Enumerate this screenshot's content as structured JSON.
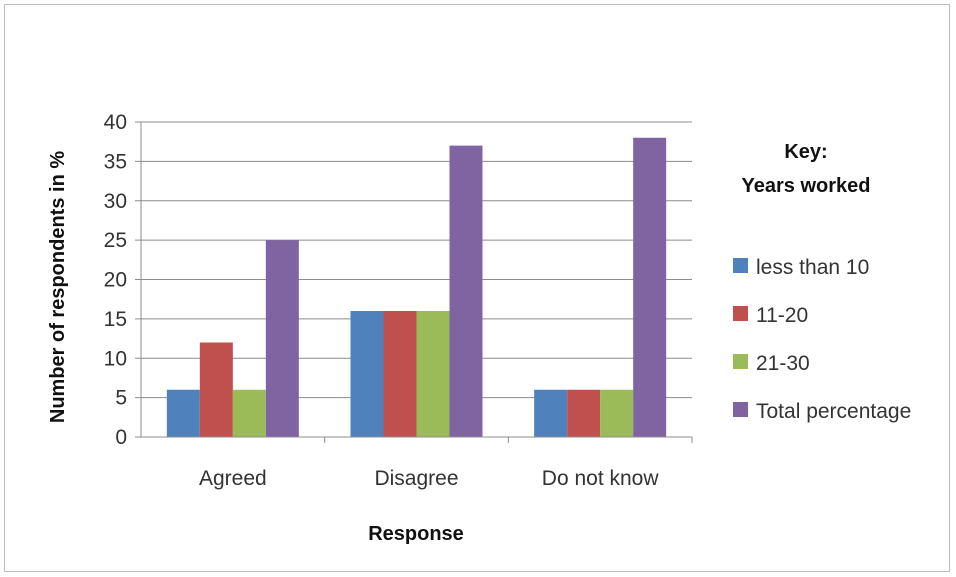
{
  "chart_data": {
    "type": "bar",
    "categories": [
      "Agreed",
      "Disagree",
      "Do not know"
    ],
    "series": [
      {
        "name": "less than 10",
        "color": "#4f81bd",
        "values": [
          6,
          16,
          6
        ]
      },
      {
        "name": "11-20",
        "color": "#c0504d",
        "values": [
          12,
          16,
          6
        ]
      },
      {
        "name": "21-30",
        "color": "#9bbb59",
        "values": [
          6,
          16,
          6
        ]
      },
      {
        "name": "Total percentage",
        "color": "#8064a2",
        "values": [
          25,
          37,
          38
        ]
      }
    ],
    "xlabel": "Response",
    "ylabel": "Number of respondents in %",
    "ylim": [
      0,
      40
    ],
    "yticks": [
      0,
      5,
      10,
      15,
      20,
      25,
      30,
      35,
      40
    ],
    "grid": true,
    "legend": {
      "title_line1": "Key:",
      "title_line2": "Years worked",
      "placement": "right"
    }
  }
}
